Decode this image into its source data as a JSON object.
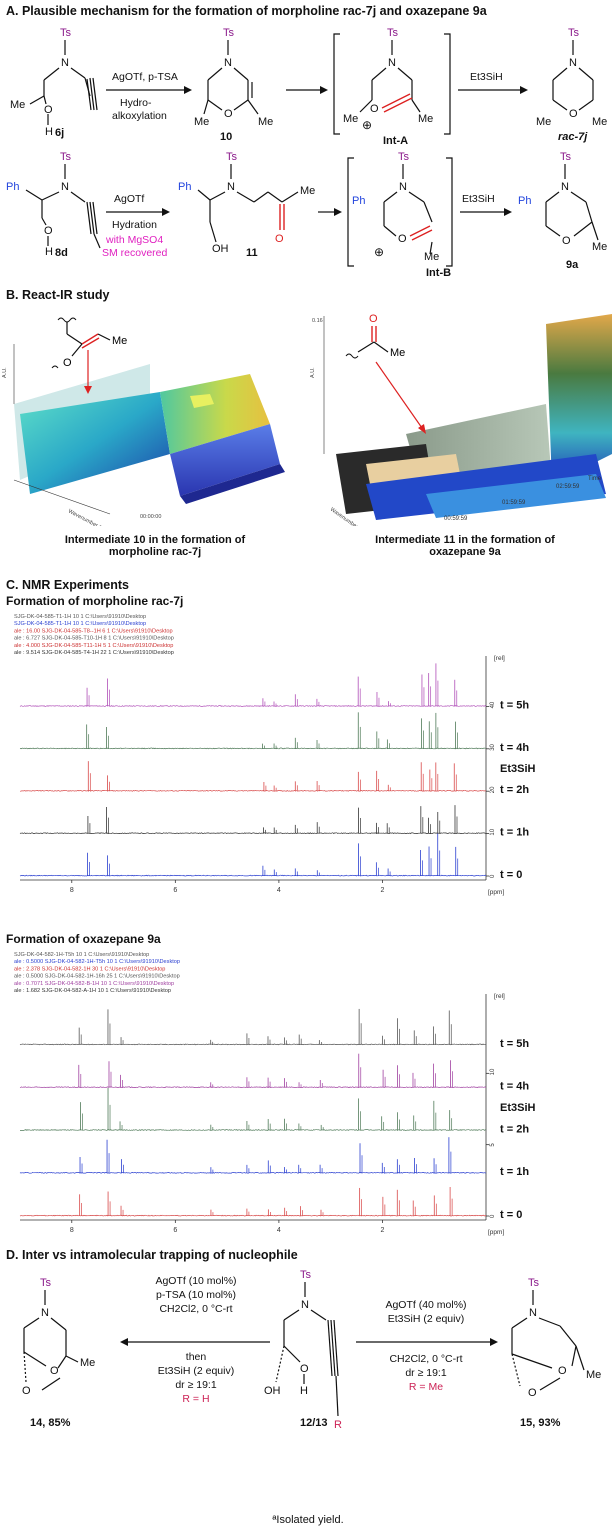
{
  "sectionA": {
    "title": "A. Plausible mechanism for the formation of morpholine rac-7j and oxazepane 9a",
    "row1": {
      "reagents_top": "AgOTf, p-TSA",
      "reagents_bottom": [
        "Hydro-",
        "alkoxylation"
      ],
      "c6j": "6j",
      "c10": "10",
      "intA": "Int-A",
      "c7j": "rac-7j",
      "silane": "Et3SiH"
    },
    "row2": {
      "reagent_top": "AgOTf",
      "reagent_bottom": "Hydration",
      "note": [
        "with MgSO4",
        "SM recovered"
      ],
      "c8d": "8d",
      "c11": "11",
      "intB": "Int-B",
      "c9a": "9a",
      "silane": "Et3SiH"
    },
    "labels": {
      "ts": "Ts",
      "n": "N",
      "o": "O",
      "h": "H",
      "me": "Me",
      "ph": "Ph",
      "oh": "OH",
      "plus": "⊕"
    }
  },
  "sectionB": {
    "title": "B. React-IR study",
    "caption_left": [
      "Intermediate 10 in the formation of",
      "morpholine rac-7j"
    ],
    "caption_right": [
      "Intermediate 11 in the formation of",
      "oxazepane 9a"
    ],
    "axis_left": {
      "z": "A.U.",
      "x": "Wavenumber (cm-1)",
      "t": "00:00:00"
    },
    "axis_right": {
      "z": "A.U.",
      "x": "Wavenumber (cm-1)",
      "t": "Time",
      "ticks": [
        "00:59:59",
        "01:59:59",
        "02:59:59"
      ],
      "z_top": "0.16"
    }
  },
  "sectionC": {
    "title": "C. NMR Experiments",
    "panel1": {
      "title": "Formation of morpholine rac-7j",
      "legend": [
        "SJG-DK-04-585-T1-1H  10  1  C:\\Users\\91910\\Desktop",
        "SJG-DK-04-585-T1-1H  10  1  C:\\Users\\91910\\Desktop",
        "ale : 16.00   SJG-DK-04-585-T8--1H  6  1  C:\\Users\\91910\\Desktop",
        "ale : 6.727   SJG-DK-04-585-T10-1H  8  1  C:\\Users\\91910\\Desktop",
        "ale : 4.000   SJG-DK-04-585-T11-1H  5  1  C:\\Users\\91910\\Desktop",
        "ale : 9.514   SJG-DK-04-585-T4-1H  22  1  C:\\Users\\91910\\Desktop"
      ],
      "legend_colors": [
        "#555555",
        "#2a3fd0",
        "#cc3030",
        "#555555",
        "#cc3030",
        "#333333"
      ],
      "times": [
        "t = 5h",
        "t = 4h",
        "t = 2h",
        "t = 1h",
        "t = 0"
      ],
      "silane": "Et3SiH",
      "yticks": [
        "40",
        "30",
        "20",
        "10",
        "0"
      ],
      "xticks": [
        "8",
        "6",
        "4",
        "2"
      ],
      "unit": "[ppm]",
      "yunit": "[rel]"
    },
    "panel2": {
      "title": "Formation of oxazepane 9a",
      "legend": [
        "SJG-DK-04-582-1H-T5h  10  1  C:\\Users\\91910\\Desktop",
        "ale : 0.5000  SJG-DK-04-582-1H-T5h  10  1  C:\\Users\\91910\\Desktop",
        "ale : 2.378   SJG-DK-04-582-1H  30  1  C:\\Users\\91910\\Desktop",
        "ale : 0.5000  SJG-DK-04-582-1H-16h  25  1  C:\\Users\\91910\\Desktop",
        "ale : 0.7071  SJG-DK-04-582-B-1H  10  1  C:\\Users\\91910\\Desktop",
        "ale : 1.682   SJG-DK-04-582-A-1H  10  1  C:\\Users\\91910\\Desktop"
      ],
      "legend_colors": [
        "#555555",
        "#2a3fd0",
        "#cc3030",
        "#555555",
        "#a040a0",
        "#333333"
      ],
      "times": [
        "t = 5h",
        "t = 4h",
        "t = 2h",
        "t = 1h",
        "t = 0"
      ],
      "silane": "Et3SiH",
      "yticks": [
        "10",
        "5",
        "0"
      ],
      "xticks": [
        "8",
        "6",
        "4",
        "2"
      ],
      "unit": "[ppm]",
      "yunit": "[rel]"
    }
  },
  "sectionD": {
    "title": "D. Inter vs intramolecular trapping of nucleophile",
    "left_conditions": [
      "AgOTf (10 mol%)",
      "p-TSA (10 mol%)",
      "CH2Cl2, 0 °C-rt",
      "then",
      "Et3SiH (2 equiv)",
      "dr ≥ 19:1"
    ],
    "left_r": "R = H",
    "right_conditions_top": [
      "AgOTf (40 mol%)",
      "Et3SiH (2 equiv)"
    ],
    "right_conditions_bottom": [
      "CH2Cl2, 0 °C-rt",
      "dr ≥ 19:1"
    ],
    "right_r": "R = Me",
    "c14": "14, 85%",
    "c1213": "12/13",
    "c15": "15, 93%",
    "r": "R"
  },
  "footnote": "ªIsolated yield."
}
